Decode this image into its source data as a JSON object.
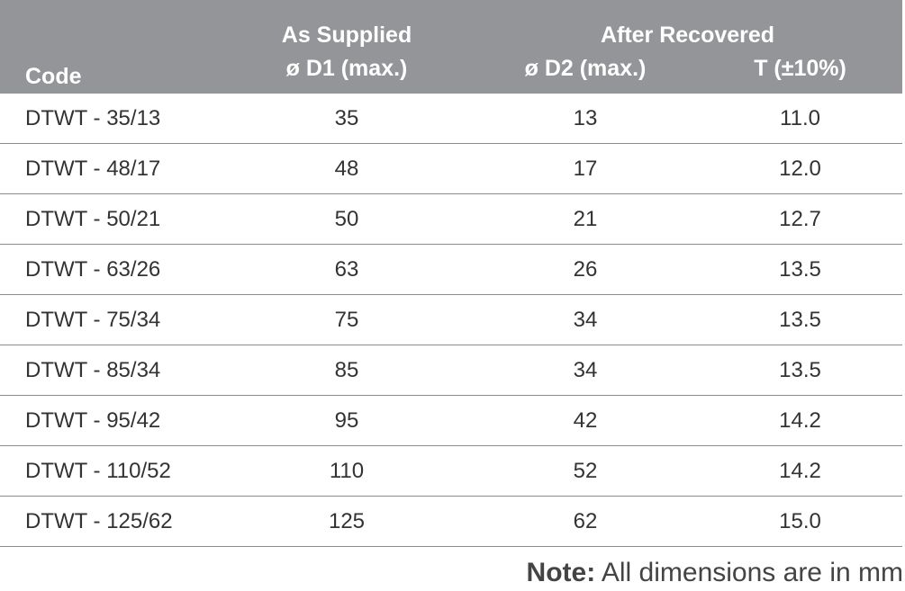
{
  "table": {
    "headers": {
      "code": "Code",
      "as_supplied": "As Supplied",
      "after_recovered": "After Recovered",
      "d1": "ø D1 (max.)",
      "d2": "ø D2 (max.)",
      "t": "T (±10%)"
    },
    "rows": [
      {
        "code": "DTWT - 35/13",
        "d1": "35",
        "d2": "13",
        "t": "11.0"
      },
      {
        "code": "DTWT - 48/17",
        "d1": "48",
        "d2": "17",
        "t": "12.0"
      },
      {
        "code": "DTWT - 50/21",
        "d1": "50",
        "d2": "21",
        "t": "12.7"
      },
      {
        "code": "DTWT - 63/26",
        "d1": "63",
        "d2": "26",
        "t": "13.5"
      },
      {
        "code": "DTWT - 75/34",
        "d1": "75",
        "d2": "34",
        "t": "13.5"
      },
      {
        "code": "DTWT - 85/34",
        "d1": "85",
        "d2": "34",
        "t": "13.5"
      },
      {
        "code": "DTWT - 95/42",
        "d1": "95",
        "d2": "42",
        "t": "14.2"
      },
      {
        "code": "DTWT - 110/52",
        "d1": "110",
        "d2": "52",
        "t": "14.2"
      },
      {
        "code": "DTWT - 125/62",
        "d1": "125",
        "d2": "62",
        "t": "15.0"
      }
    ]
  },
  "note": {
    "label": "Note:",
    "text": " All dimensions are in mm"
  },
  "colors": {
    "header_bg": "#939598",
    "header_text": "#ffffff",
    "row_divider": "#8a8c8f",
    "body_text": "#333333"
  }
}
